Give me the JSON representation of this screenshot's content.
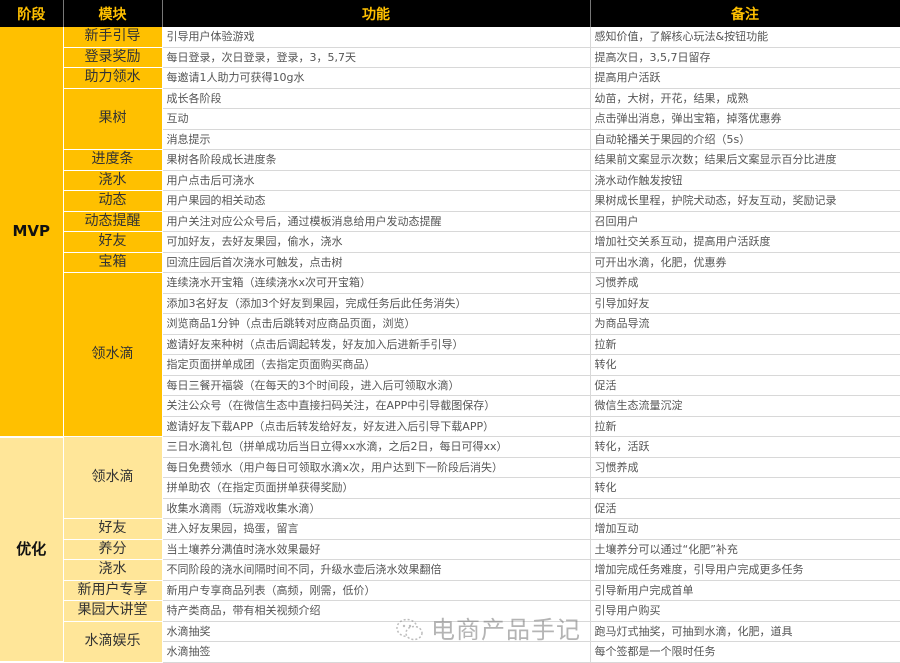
{
  "headers": [
    "阶段",
    "模块",
    "功能",
    "备注"
  ],
  "colors": {
    "header_bg": "#000000",
    "header_text": "#FFC000",
    "mvp": "#FFC000",
    "optimize": "#FFE699"
  },
  "stages": [
    {
      "name": "MVP",
      "cls": "mvp",
      "modules": [
        {
          "name": "新手引导",
          "rows": [
            [
              "引导用户体验游戏",
              "感知价值，了解核心玩法&按钮功能"
            ]
          ]
        },
        {
          "name": "登录奖励",
          "rows": [
            [
              "每日登录，次日登录，登录，3，5,7天",
              "提高次日，3,5,7日留存"
            ]
          ]
        },
        {
          "name": "助力领水",
          "rows": [
            [
              "每邀请1人助力可获得10g水",
              "提高用户活跃"
            ]
          ]
        },
        {
          "name": "果树",
          "rows": [
            [
              "成长各阶段",
              "幼苗，大树，开花，结果，成熟"
            ],
            [
              "互动",
              "点击弹出消息，弹出宝箱，掉落优惠券"
            ],
            [
              "消息提示",
              "自动轮播关于果园的介绍（5s）"
            ]
          ]
        },
        {
          "name": "进度条",
          "rows": [
            [
              "果树各阶段成长进度条",
              "结果前文案显示次数；结果后文案显示百分比进度"
            ]
          ]
        },
        {
          "name": "浇水",
          "rows": [
            [
              "用户点击后可浇水",
              "浇水动作触发按钮"
            ]
          ]
        },
        {
          "name": "动态",
          "rows": [
            [
              "用户果园的相关动态",
              "果树成长里程，护院犬动态，好友互动，奖励记录"
            ]
          ]
        },
        {
          "name": "动态提醒",
          "rows": [
            [
              "用户关注对应公众号后，通过模板消息给用户发动态提醒",
              "召回用户"
            ]
          ]
        },
        {
          "name": "好友",
          "rows": [
            [
              "可加好友，去好友果园，偷水，浇水",
              "增加社交关系互动，提高用户活跃度"
            ]
          ]
        },
        {
          "name": "宝箱",
          "rows": [
            [
              "回流庄园后首次浇水可触发，点击树",
              "可开出水滴，化肥，优惠券"
            ]
          ]
        },
        {
          "name": "领水滴",
          "rows": [
            [
              "连续浇水开宝箱（连续浇水x次可开宝箱）",
              "习惯养成"
            ],
            [
              "添加3名好友（添加3个好友到果园，完成任务后此任务消失）",
              "引导加好友"
            ],
            [
              "浏览商品1分钟（点击后跳转对应商品页面，浏览）",
              "为商品导流"
            ],
            [
              "邀请好友来种树（点击后调起转发，好友加入后进新手引导）",
              "拉新"
            ],
            [
              "指定页面拼单成团（去指定页面购买商品）",
              "转化"
            ],
            [
              "每日三餐开福袋（在每天的3个时间段，进入后可领取水滴）",
              "促活"
            ],
            [
              "关注公众号（在微信生态中直接扫码关注，在APP中引导截图保存）",
              "微信生态流量沉淀"
            ],
            [
              "邀请好友下载APP（点击后转发给好友，好友进入后引导下载APP）",
              "拉新"
            ]
          ]
        }
      ]
    },
    {
      "name": "优化",
      "cls": "opt",
      "modules": [
        {
          "name": "领水滴",
          "rows": [
            [
              "三日水滴礼包（拼单成功后当日立得xx水滴，之后2日，每日可得xx）",
              "转化，活跃"
            ],
            [
              "每日免费领水（用户每日可领取水滴x次，用户达到下一阶段后消失）",
              "习惯养成"
            ],
            [
              "拼单助农（在指定页面拼单获得奖励）",
              "转化"
            ],
            [
              "收集水滴雨（玩游戏收集水滴）",
              "促活"
            ]
          ]
        },
        {
          "name": "好友",
          "rows": [
            [
              "进入好友果园，捣蛋，留言",
              "增加互动"
            ]
          ]
        },
        {
          "name": "养分",
          "rows": [
            [
              "当土壤养分满值时浇水效果最好",
              "土壤养分可以通过“化肥”补充"
            ]
          ]
        },
        {
          "name": "浇水",
          "rows": [
            [
              "不同阶段的浇水间隔时间不同，升级水壶后浇水效果翻倍",
              "增加完成任务难度，引导用户完成更多任务"
            ]
          ]
        },
        {
          "name": "新用户专享",
          "rows": [
            [
              "新用户专享商品列表（高频，刚需，低价）",
              "引导新用户完成首单"
            ]
          ]
        },
        {
          "name": "果园大讲堂",
          "rows": [
            [
              "特产类商品，带有相关视频介绍",
              "引导用户购买"
            ]
          ]
        },
        {
          "name": "水滴娱乐",
          "rows": [
            [
              "水滴抽奖",
              "跑马灯式抽奖，可抽到水滴，化肥，道具"
            ],
            [
              "水滴抽签",
              "每个签都是一个限时任务"
            ]
          ]
        }
      ]
    }
  ],
  "watermark": {
    "text": "电商产品手记",
    "icon": "wechat-icon"
  }
}
